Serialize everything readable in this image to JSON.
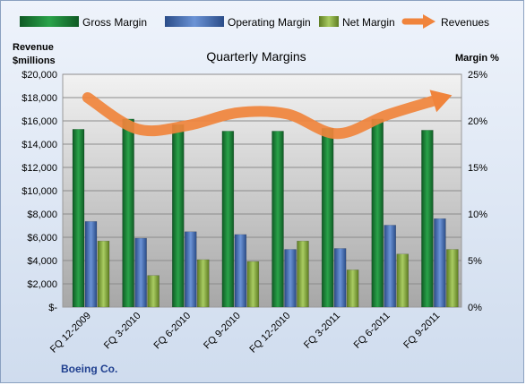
{
  "chart_data": {
    "type": "bar",
    "title": "Quarterly Margins",
    "left_axis_label": "Revenue\n$millions",
    "right_axis_label": "Margin %",
    "footer": "Boeing Co.",
    "categories": [
      "FQ 12-2009",
      "FQ 3-2010",
      "FQ 6-2010",
      "FQ 9-2010",
      "FQ 12-2010",
      "FQ 3-2011",
      "FQ 6-2011",
      "FQ 9-2011"
    ],
    "left_ylim": [
      0,
      20000
    ],
    "left_ticks": [
      "$-",
      "$2,000",
      "$4,000",
      "$6,000",
      "$8,000",
      "$10,000",
      "$12,000",
      "$14,000",
      "$16,000",
      "$18,000",
      "$20,000"
    ],
    "right_ylim": [
      0,
      25
    ],
    "right_ticks": [
      "0%",
      "5%",
      "10%",
      "15%",
      "20%",
      "25%"
    ],
    "legend_position": "top",
    "series": [
      {
        "name": "Gross Margin",
        "kind": "bar",
        "axis": "right",
        "color": "#1e8a3c",
        "values": [
          19.1,
          20.2,
          19.6,
          18.9,
          18.9,
          19.2,
          20.2,
          19.0
        ]
      },
      {
        "name": "Operating Margin",
        "kind": "bar",
        "axis": "right",
        "color": "#4b74b8",
        "values": [
          9.2,
          7.4,
          8.1,
          7.8,
          6.2,
          6.3,
          8.8,
          9.5
        ]
      },
      {
        "name": "Net Margin",
        "kind": "bar",
        "axis": "right",
        "color": "#8fb24a",
        "values": [
          7.1,
          3.4,
          5.1,
          4.9,
          7.1,
          4.0,
          5.7,
          6.2
        ]
      },
      {
        "name": "Revenues",
        "kind": "line",
        "axis": "left",
        "color": "#f0843c",
        "values": [
          18000,
          15300,
          15600,
          16700,
          16600,
          14900,
          16500,
          17800
        ]
      }
    ]
  }
}
